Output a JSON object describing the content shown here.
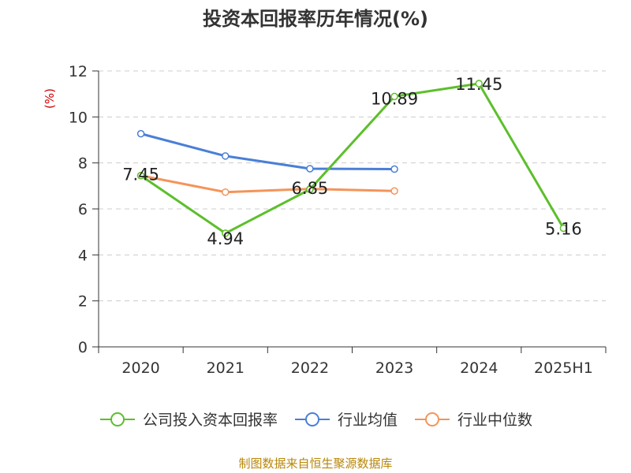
{
  "page": {
    "title": "投资本回报率历年情况(%)",
    "footer": "制图数据来自恒生聚源数据库"
  },
  "legend": [
    {
      "label": "公司投入资本回报率",
      "color": "#5cbf2a",
      "icon": "circle-line-icon"
    },
    {
      "label": "行业均值",
      "color": "#4a7fd6",
      "icon": "circle-line-icon"
    },
    {
      "label": "行业中位数",
      "color": "#f4945a",
      "icon": "circle-line-icon"
    }
  ],
  "chart_data": {
    "type": "line",
    "title": "投资本回报率历年情况(%)",
    "ylabel": "(%)",
    "xlabel": "",
    "categories": [
      "2020",
      "2021",
      "2022",
      "2023",
      "2024",
      "2025H1"
    ],
    "ylim": [
      0,
      12
    ],
    "yticks": [
      "0",
      "2",
      "4",
      "6",
      "8",
      "10",
      "12"
    ],
    "grid": true,
    "legend_position": "bottom",
    "series": [
      {
        "name": "公司投入资本回报率",
        "color": "#5cbf2a",
        "values": [
          7.45,
          4.94,
          6.85,
          10.89,
          11.45,
          5.16
        ],
        "labels": [
          "7.45",
          "4.94",
          "6.85",
          "10.89",
          "11.45",
          "5.16"
        ]
      },
      {
        "name": "行业均值",
        "color": "#4a7fd6",
        "values": [
          9.27,
          8.3,
          7.75,
          7.73,
          null,
          null
        ]
      },
      {
        "name": "行业中位数",
        "color": "#f4945a",
        "values": [
          7.45,
          6.73,
          6.87,
          6.78,
          null,
          null
        ]
      }
    ]
  }
}
